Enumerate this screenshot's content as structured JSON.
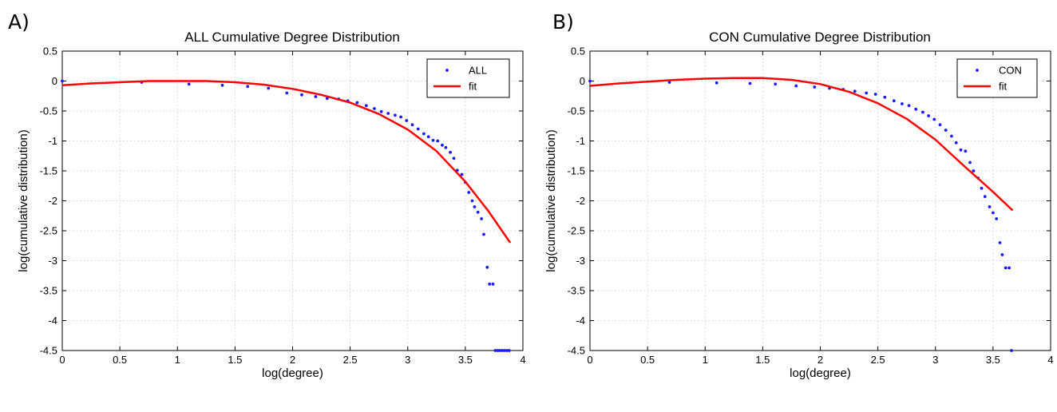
{
  "chart_data": [
    {
      "panel_label": "A)",
      "type": "scatter",
      "title": "ALL Cumulative Degree Distribution",
      "xlabel": "log(degree)",
      "ylabel": "log(cumulative distribution)",
      "xlim": [
        0,
        4
      ],
      "ylim": [
        -4.5,
        0.5
      ],
      "xticks": [
        0,
        0.5,
        1,
        1.5,
        2,
        2.5,
        3,
        3.5,
        4
      ],
      "xtick_labels": [
        "0",
        "0.5",
        "1",
        "1.5",
        "2",
        "2.5",
        "3",
        "3.5",
        "4"
      ],
      "yticks": [
        0.5,
        0,
        -0.5,
        -1,
        -1.5,
        -2,
        -2.5,
        -3,
        -3.5,
        -4,
        -4.5
      ],
      "ytick_labels": [
        "0.5",
        "0",
        "-0.5",
        "-1",
        "-1.5",
        "-2",
        "-2.5",
        "-3",
        "-3.5",
        "-4",
        "-4.5"
      ],
      "grid": true,
      "legend_position": "top-right",
      "series": [
        {
          "name": "ALL",
          "style": "points",
          "color": "#1a1aff",
          "points": [
            [
              0.0,
              0.0
            ],
            [
              0.69,
              -0.02
            ],
            [
              1.1,
              -0.05
            ],
            [
              1.39,
              -0.07
            ],
            [
              1.61,
              -0.09
            ],
            [
              1.79,
              -0.12
            ],
            [
              1.95,
              -0.2
            ],
            [
              2.08,
              -0.23
            ],
            [
              2.2,
              -0.26
            ],
            [
              2.3,
              -0.29
            ],
            [
              2.4,
              -0.3
            ],
            [
              2.48,
              -0.33
            ],
            [
              2.56,
              -0.36
            ],
            [
              2.64,
              -0.41
            ],
            [
              2.71,
              -0.46
            ],
            [
              2.77,
              -0.51
            ],
            [
              2.83,
              -0.54
            ],
            [
              2.89,
              -0.57
            ],
            [
              2.94,
              -0.6
            ],
            [
              2.99,
              -0.66
            ],
            [
              3.04,
              -0.73
            ],
            [
              3.09,
              -0.8
            ],
            [
              3.14,
              -0.88
            ],
            [
              3.18,
              -0.93
            ],
            [
              3.22,
              -0.99
            ],
            [
              3.26,
              -1.0
            ],
            [
              3.3,
              -1.07
            ],
            [
              3.33,
              -1.11
            ],
            [
              3.37,
              -1.19
            ],
            [
              3.4,
              -1.29
            ],
            [
              3.43,
              -1.49
            ],
            [
              3.47,
              -1.56
            ],
            [
              3.5,
              -1.69
            ],
            [
              3.53,
              -1.86
            ],
            [
              3.56,
              -2.0
            ],
            [
              3.58,
              -2.1
            ],
            [
              3.61,
              -2.19
            ],
            [
              3.64,
              -2.3
            ],
            [
              3.66,
              -2.56
            ],
            [
              3.69,
              -3.11
            ],
            [
              3.71,
              -3.39
            ],
            [
              3.74,
              -3.39
            ],
            [
              3.76,
              -4.5
            ],
            [
              3.78,
              -4.5
            ],
            [
              3.8,
              -4.5
            ],
            [
              3.82,
              -4.5
            ],
            [
              3.84,
              -4.5
            ],
            [
              3.86,
              -4.5
            ],
            [
              3.88,
              -4.5
            ]
          ]
        },
        {
          "name": "fit",
          "style": "line",
          "color": "#ff0000",
          "points": [
            [
              0.0,
              -0.07
            ],
            [
              0.25,
              -0.04
            ],
            [
              0.5,
              -0.02
            ],
            [
              0.75,
              0.0
            ],
            [
              1.0,
              0.0
            ],
            [
              1.25,
              0.0
            ],
            [
              1.5,
              -0.02
            ],
            [
              1.75,
              -0.06
            ],
            [
              2.0,
              -0.13
            ],
            [
              2.25,
              -0.23
            ],
            [
              2.5,
              -0.36
            ],
            [
              2.75,
              -0.55
            ],
            [
              3.0,
              -0.81
            ],
            [
              3.25,
              -1.17
            ],
            [
              3.5,
              -1.68
            ],
            [
              3.7,
              -2.17
            ],
            [
              3.89,
              -2.7
            ]
          ]
        }
      ]
    },
    {
      "panel_label": "B)",
      "type": "scatter",
      "title": "CON Cumulative Degree Distribution",
      "xlabel": "log(degree)",
      "ylabel": "log(cumulative distribution)",
      "xlim": [
        0,
        4
      ],
      "ylim": [
        -4.5,
        0.5
      ],
      "xticks": [
        0,
        0.5,
        1,
        1.5,
        2,
        2.5,
        3,
        3.5,
        4
      ],
      "xtick_labels": [
        "0",
        "0.5",
        "1",
        "1.5",
        "2",
        "2.5",
        "3",
        "3.5",
        "4"
      ],
      "yticks": [
        0.5,
        0,
        -0.5,
        -1,
        -1.5,
        -2,
        -2.5,
        -3,
        -3.5,
        -4,
        -4.5
      ],
      "ytick_labels": [
        "0.5",
        "0",
        "-0.5",
        "-1",
        "-1.5",
        "-2",
        "-2.5",
        "-3",
        "-3.5",
        "-4",
        "-4.5"
      ],
      "grid": true,
      "legend_position": "top-right",
      "series": [
        {
          "name": "CON",
          "style": "points",
          "color": "#1a1aff",
          "points": [
            [
              0.0,
              0.0
            ],
            [
              0.69,
              -0.02
            ],
            [
              1.1,
              -0.03
            ],
            [
              1.39,
              -0.04
            ],
            [
              1.61,
              -0.05
            ],
            [
              1.79,
              -0.08
            ],
            [
              1.95,
              -0.1
            ],
            [
              2.08,
              -0.12
            ],
            [
              2.2,
              -0.14
            ],
            [
              2.3,
              -0.17
            ],
            [
              2.4,
              -0.2
            ],
            [
              2.48,
              -0.22
            ],
            [
              2.56,
              -0.27
            ],
            [
              2.64,
              -0.33
            ],
            [
              2.71,
              -0.38
            ],
            [
              2.77,
              -0.41
            ],
            [
              2.83,
              -0.47
            ],
            [
              2.89,
              -0.52
            ],
            [
              2.94,
              -0.58
            ],
            [
              2.99,
              -0.64
            ],
            [
              3.04,
              -0.73
            ],
            [
              3.09,
              -0.82
            ],
            [
              3.14,
              -0.92
            ],
            [
              3.18,
              -1.03
            ],
            [
              3.22,
              -1.15
            ],
            [
              3.26,
              -1.17
            ],
            [
              3.3,
              -1.36
            ],
            [
              3.33,
              -1.5
            ],
            [
              3.37,
              -1.62
            ],
            [
              3.4,
              -1.79
            ],
            [
              3.43,
              -1.93
            ],
            [
              3.47,
              -2.1
            ],
            [
              3.5,
              -2.2
            ],
            [
              3.53,
              -2.3
            ],
            [
              3.56,
              -2.7
            ],
            [
              3.58,
              -2.9
            ],
            [
              3.61,
              -3.12
            ],
            [
              3.64,
              -3.12
            ],
            [
              3.66,
              -4.5
            ]
          ]
        },
        {
          "name": "fit",
          "style": "line",
          "color": "#ff0000",
          "points": [
            [
              0.0,
              -0.08
            ],
            [
              0.25,
              -0.04
            ],
            [
              0.5,
              -0.01
            ],
            [
              0.75,
              0.02
            ],
            [
              1.0,
              0.04
            ],
            [
              1.25,
              0.05
            ],
            [
              1.5,
              0.05
            ],
            [
              1.75,
              0.02
            ],
            [
              2.0,
              -0.05
            ],
            [
              2.25,
              -0.18
            ],
            [
              2.5,
              -0.37
            ],
            [
              2.75,
              -0.63
            ],
            [
              3.0,
              -0.98
            ],
            [
              3.25,
              -1.42
            ],
            [
              3.5,
              -1.85
            ],
            [
              3.67,
              -2.16
            ]
          ]
        }
      ]
    }
  ]
}
